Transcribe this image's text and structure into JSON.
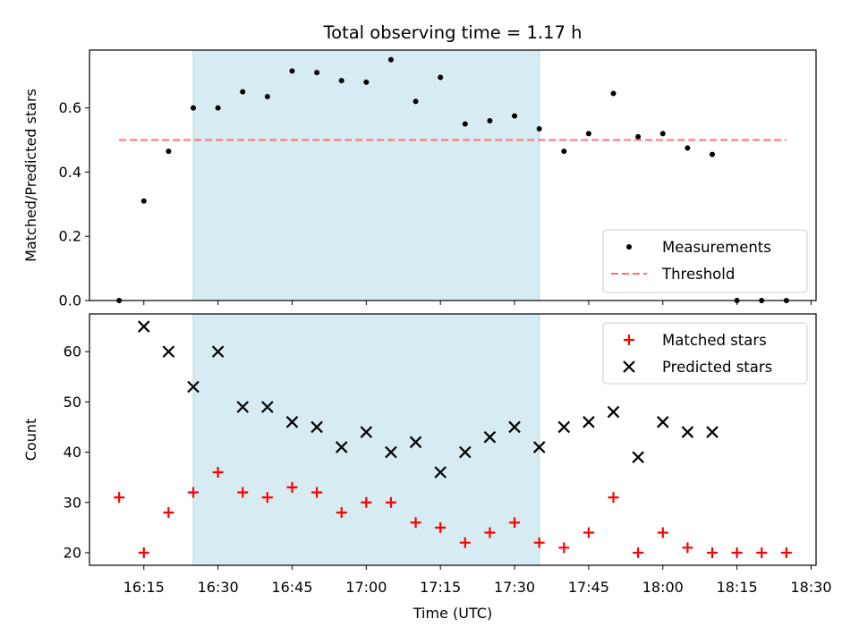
{
  "chart_data": [
    {
      "type": "scatter",
      "title": "Total observing time = 1.17 h",
      "xlabel": "",
      "ylabel": "Matched/Predicted stars",
      "ylim": [
        0,
        0.78
      ],
      "yticks": [
        "0.0",
        "0.2",
        "0.4",
        "0.6"
      ],
      "ytick_values": [
        0,
        0.2,
        0.4,
        0.6
      ],
      "xlim": [
        "16:04",
        "18:31"
      ],
      "highlight_span": [
        "16:25",
        "17:35"
      ],
      "highlight_color": "#add8e6",
      "legend_position": "lower right",
      "series": [
        {
          "name": "Measurements",
          "marker": "dot",
          "color": "#000000",
          "x": [
            "16:10",
            "16:15",
            "16:20",
            "16:25",
            "16:30",
            "16:35",
            "16:40",
            "16:45",
            "16:50",
            "16:55",
            "17:00",
            "17:05",
            "17:10",
            "17:15",
            "17:20",
            "17:25",
            "17:30",
            "17:35",
            "17:40",
            "17:45",
            "17:50",
            "17:55",
            "18:00",
            "18:05",
            "18:10",
            "18:15",
            "18:20",
            "18:25"
          ],
          "values": [
            0.0,
            0.31,
            0.465,
            0.6,
            0.6,
            0.65,
            0.635,
            0.715,
            0.71,
            0.685,
            0.68,
            0.75,
            0.62,
            0.695,
            0.55,
            0.56,
            0.575,
            0.535,
            0.465,
            0.52,
            0.645,
            0.51,
            0.52,
            0.475,
            0.455,
            0.0,
            0.0,
            0.0
          ]
        },
        {
          "name": "Threshold",
          "marker": "dashed-line",
          "color": "#ff7070",
          "x": [
            "16:10",
            "18:25"
          ],
          "values": [
            0.5,
            0.5
          ]
        }
      ]
    },
    {
      "type": "scatter",
      "title": "",
      "xlabel": "Time (UTC)",
      "ylabel": "Count",
      "ylim": [
        17.5,
        67.5
      ],
      "yticks": [
        "20",
        "30",
        "40",
        "50",
        "60"
      ],
      "ytick_values": [
        20,
        30,
        40,
        50,
        60
      ],
      "xlim": [
        "16:04",
        "18:31"
      ],
      "xticks": [
        "16:15",
        "16:30",
        "16:45",
        "17:00",
        "17:15",
        "17:30",
        "17:45",
        "18:00",
        "18:15",
        "18:30"
      ],
      "highlight_span": [
        "16:25",
        "17:35"
      ],
      "highlight_color": "#add8e6",
      "legend_position": "upper right",
      "series": [
        {
          "name": "Matched stars",
          "marker": "plus",
          "color": "#ff0000",
          "x": [
            "16:10",
            "16:15",
            "16:20",
            "16:25",
            "16:30",
            "16:35",
            "16:40",
            "16:45",
            "16:50",
            "16:55",
            "17:00",
            "17:05",
            "17:10",
            "17:15",
            "17:20",
            "17:25",
            "17:30",
            "17:35",
            "17:40",
            "17:45",
            "17:50",
            "17:55",
            "18:00",
            "18:05",
            "18:10",
            "18:15",
            "18:20",
            "18:25"
          ],
          "values": [
            31,
            20,
            28,
            32,
            36,
            32,
            31,
            33,
            32,
            28,
            30,
            30,
            26,
            25,
            22,
            24,
            26,
            22,
            21,
            24,
            31,
            20,
            24,
            21,
            20,
            20,
            20,
            20
          ]
        },
        {
          "name": "Predicted stars",
          "marker": "x",
          "color": "#000000",
          "x": [
            "16:15",
            "16:20",
            "16:25",
            "16:30",
            "16:35",
            "16:40",
            "16:45",
            "16:50",
            "16:55",
            "17:00",
            "17:05",
            "17:10",
            "17:15",
            "17:20",
            "17:25",
            "17:30",
            "17:35",
            "17:40",
            "17:45",
            "17:50",
            "17:55",
            "18:00",
            "18:05",
            "18:10"
          ],
          "values": [
            65,
            60,
            53,
            60,
            49,
            49,
            46,
            45,
            41,
            44,
            40,
            42,
            36,
            40,
            43,
            45,
            41,
            45,
            46,
            48,
            39,
            46,
            44,
            44
          ]
        }
      ]
    }
  ]
}
